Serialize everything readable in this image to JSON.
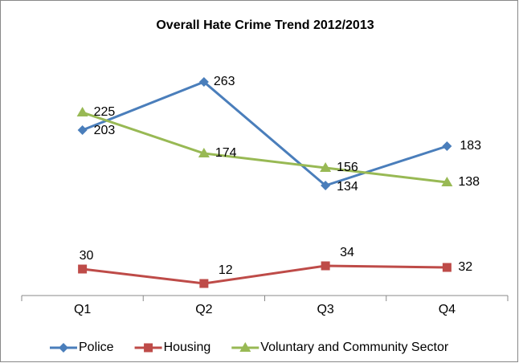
{
  "chart_data": {
    "type": "line",
    "title": "Overall Hate Crime Trend 2012/2013",
    "categories": [
      "Q1",
      "Q2",
      "Q3",
      "Q4"
    ],
    "series": [
      {
        "name": "Police",
        "color": "#4a7ebb",
        "marker": "diamond",
        "values": [
          203,
          263,
          134,
          183
        ]
      },
      {
        "name": "Housing",
        "color": "#be4b48",
        "marker": "square",
        "values": [
          30,
          12,
          34,
          32
        ]
      },
      {
        "name": "Voluntary and Community Sector",
        "color": "#98b954",
        "marker": "triangle",
        "values": [
          225,
          174,
          156,
          138
        ]
      }
    ],
    "ylim": [
      0,
      300
    ],
    "grid": false,
    "legend": "bottom"
  }
}
